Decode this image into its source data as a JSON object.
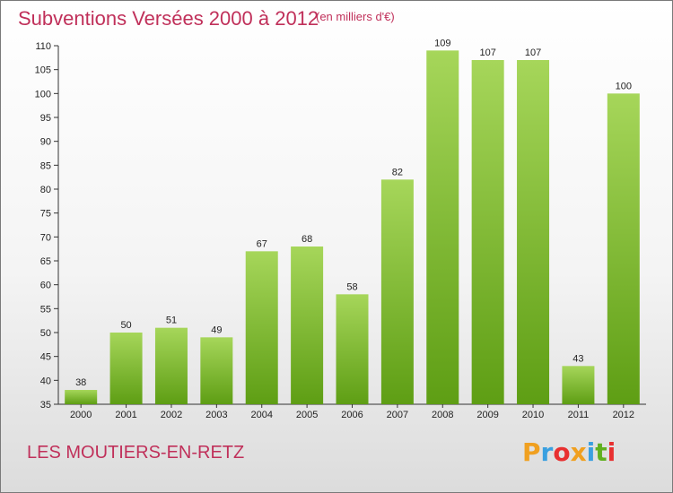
{
  "header": {
    "title": "Subventions Versées 2000 à 2012",
    "unit": "(en milliers d'€)"
  },
  "footer": {
    "commune": "LES MOUTIERS-EN-RETZ",
    "logo_letters": [
      "P",
      "r",
      "o",
      "x",
      "i",
      "t",
      "i"
    ],
    "logo_colors": [
      "#f0a020",
      "#3aa0e0",
      "#e83030",
      "#f0a020",
      "#3aa0e0",
      "#60b020",
      "#e83030"
    ]
  },
  "chart_data": {
    "type": "bar",
    "title": "Subventions Versées 2000 à 2012",
    "subtitle": "(en milliers d'€)",
    "categories": [
      "2000",
      "2001",
      "2002",
      "2003",
      "2004",
      "2005",
      "2006",
      "2007",
      "2008",
      "2009",
      "2010",
      "2011",
      "2012"
    ],
    "values": [
      38,
      50,
      51,
      49,
      67,
      68,
      58,
      82,
      109,
      107,
      107,
      43,
      100
    ],
    "ylim": [
      35,
      110
    ],
    "yticks": [
      35,
      40,
      45,
      50,
      55,
      60,
      65,
      70,
      75,
      80,
      85,
      90,
      95,
      100,
      105,
      110
    ],
    "grid": false,
    "legend": "none",
    "bar_color_top": "#a6d65a",
    "bar_color_bottom": "#5e9e14"
  }
}
